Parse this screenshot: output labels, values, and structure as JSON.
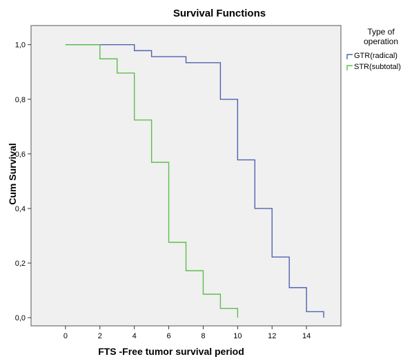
{
  "chart_data": {
    "type": "line",
    "step": true,
    "title": "Survival Functions",
    "xlabel": "FTS -Free tumor survival period",
    "ylabel": "Cum Survival",
    "xlim": [
      -2,
      16
    ],
    "ylim": [
      -0.03,
      1.07
    ],
    "xticks": [
      0,
      2,
      4,
      6,
      8,
      10,
      12,
      14
    ],
    "yticks": [
      0.0,
      0.2,
      0.4,
      0.6,
      0.8,
      1.0
    ],
    "ytick_labels": [
      "0,0",
      "0,2",
      "0,4",
      "0,6",
      "0,8",
      "1,0"
    ],
    "grid": false,
    "legend": {
      "title": [
        "Type of",
        "operation"
      ],
      "position": "right"
    },
    "series": [
      {
        "name": "GTR(radical)",
        "color": "#4f62b0",
        "points": [
          [
            0,
            1.0
          ],
          [
            4,
            0.978
          ],
          [
            5,
            0.956
          ],
          [
            7,
            0.934
          ],
          [
            9,
            0.8
          ],
          [
            10,
            0.578
          ],
          [
            11,
            0.4
          ],
          [
            12,
            0.222
          ],
          [
            13,
            0.11
          ],
          [
            14,
            0.022
          ],
          [
            15,
            0.0
          ]
        ]
      },
      {
        "name": "STR(subtotal)",
        "color": "#5bbf4a",
        "points": [
          [
            0,
            1.0
          ],
          [
            2,
            0.948
          ],
          [
            3,
            0.896
          ],
          [
            4,
            0.724
          ],
          [
            5,
            0.569
          ],
          [
            6,
            0.276
          ],
          [
            7,
            0.172
          ],
          [
            8,
            0.086
          ],
          [
            9,
            0.034
          ],
          [
            10,
            0.0
          ]
        ]
      }
    ]
  }
}
